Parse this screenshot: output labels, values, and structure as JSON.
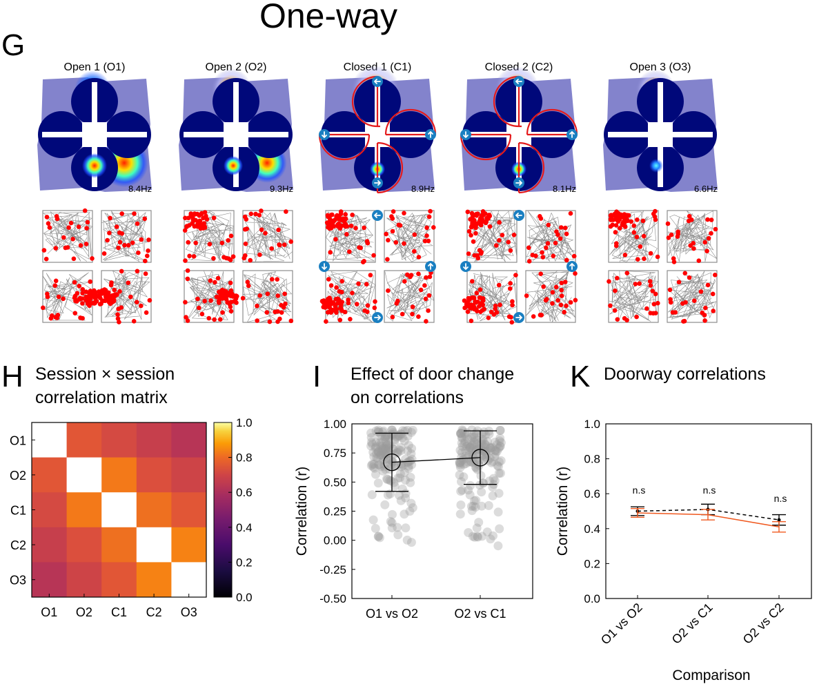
{
  "figure": {
    "title": "One-way",
    "panel_g": "G",
    "panel_h": "H",
    "panel_i": "I",
    "panel_k": "K"
  },
  "colors": {
    "heatmap_bg": "#8383cc",
    "dark_blue": "#00087a",
    "door_red": "#e41a1c",
    "arrow_blue": "#1a7fc1",
    "path_grey": "#8c8c8c",
    "spike_red": "#ff0000",
    "orange_line": "#f0581e"
  },
  "sessions": [
    {
      "label": "Open 1 (O1)",
      "rate": "8.4Hz",
      "doors": false
    },
    {
      "label": "Open 2 (O2)",
      "rate": "9.3Hz",
      "doors": false
    },
    {
      "label": "Closed 1 (C1)",
      "rate": "8.9Hz",
      "doors": true
    },
    {
      "label": "Closed 2 (C2)",
      "rate": "8.1Hz",
      "doors": true
    },
    {
      "label": "Open 3 (O3)",
      "rate": "6.6Hz",
      "doors": false
    }
  ],
  "chart_data": [
    {
      "type": "heatmap",
      "title_line1": "Session × session",
      "title_line2": "correlation matrix",
      "rows": [
        "O1",
        "O2",
        "C1",
        "C2",
        "O3"
      ],
      "cols": [
        "O1",
        "O2",
        "C1",
        "C2",
        "O3"
      ],
      "values": [
        [
          1.0,
          0.66,
          0.62,
          0.58,
          0.54
        ],
        [
          0.66,
          1.0,
          0.74,
          0.64,
          0.6
        ],
        [
          0.62,
          0.74,
          1.0,
          0.72,
          0.66
        ],
        [
          0.58,
          0.64,
          0.72,
          1.0,
          0.76
        ],
        [
          0.54,
          0.6,
          0.66,
          0.76,
          1.0
        ]
      ],
      "colorbar_ticks": [
        "0.0",
        "0.2",
        "0.4",
        "0.6",
        "0.8",
        "1.0"
      ],
      "colorbar_range": [
        0,
        1
      ]
    },
    {
      "type": "scatter",
      "title_line1": "Effect of door change",
      "title_line2": "on correlations",
      "ylabel": "Correlation (r)",
      "ylim": [
        -0.5,
        1.0
      ],
      "yticks": [
        "-0.50",
        "-0.25",
        "0.00",
        "0.25",
        "0.50",
        "0.75",
        "1.00"
      ],
      "categories": [
        "O1 vs O2",
        "O2 vs C1"
      ],
      "means": [
        0.67,
        0.71
      ],
      "error_low": [
        0.42,
        0.48
      ],
      "error_high": [
        0.92,
        0.94
      ]
    },
    {
      "type": "line",
      "title": "Doorway correlations",
      "xlabel": "Comparison",
      "ylabel": "Correlation (r)",
      "ylim": [
        0,
        1
      ],
      "yticks": [
        "0.0",
        "0.2",
        "0.4",
        "0.6",
        "0.8",
        "1.0"
      ],
      "categories": [
        "O1 vs O2",
        "O2 vs C1",
        "O2 vs C2"
      ],
      "significance": [
        "n.s",
        "n.s",
        "n.s"
      ],
      "series": [
        {
          "values": [
            0.5,
            0.51,
            0.45
          ],
          "err": [
            0.025,
            0.03,
            0.03
          ],
          "style": "dashed-black"
        },
        {
          "values": [
            0.49,
            0.48,
            0.41
          ],
          "err": [
            0.025,
            0.03,
            0.03
          ],
          "style": "solid-orange"
        }
      ]
    }
  ]
}
